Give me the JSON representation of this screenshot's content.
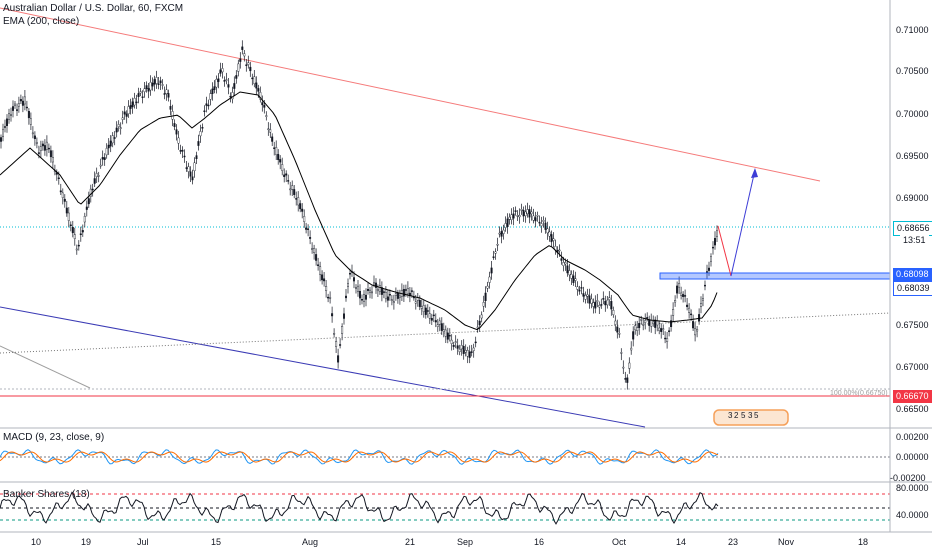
{
  "header": {
    "symbol_title": "Australian Dollar / U.S. Dollar, 60, FXCM",
    "ema_label": "EMA (200, close)"
  },
  "price_axis": {
    "ticks": [
      "0.71000",
      "0.70500",
      "0.70000",
      "0.69500",
      "0.69000",
      "0.67500",
      "0.67000",
      "0.66500"
    ]
  },
  "price_tags": {
    "last_price": "0.68656",
    "countdown": "13:51",
    "box_top": "0.68098",
    "box_bottom": "0.68039",
    "support": "0.66670"
  },
  "fib_label": "100.00%(0.66750)",
  "pattern_labels": [
    "3",
    "2",
    "5",
    "3",
    "5"
  ],
  "macd": {
    "label": "MACD (9, 23, close, 9)",
    "ticks": [
      "0.00200",
      "0.00000",
      "-0.00200"
    ]
  },
  "banker": {
    "label": "Banker Shares (18)",
    "ticks": [
      "80.0000",
      "40.0000"
    ]
  },
  "time_axis": {
    "labels": [
      "10",
      "19",
      "Jul",
      "15",
      "Aug",
      "21",
      "Sep",
      "16",
      "Oct",
      "14",
      "23",
      "Nov",
      "18"
    ]
  },
  "colors": {
    "candle": "#131722",
    "ema": "#000000",
    "resistance_line": "#f23645",
    "support_line": "#f23645",
    "channel_lower": "#2a2eb4",
    "projection_up": "#3d3dd6",
    "projection_down": "#f23645",
    "price_box": "#2962ff",
    "last_price_line": "#00bcd4",
    "macd_line": "#2196f3",
    "macd_signal": "#ff6d00"
  }
}
